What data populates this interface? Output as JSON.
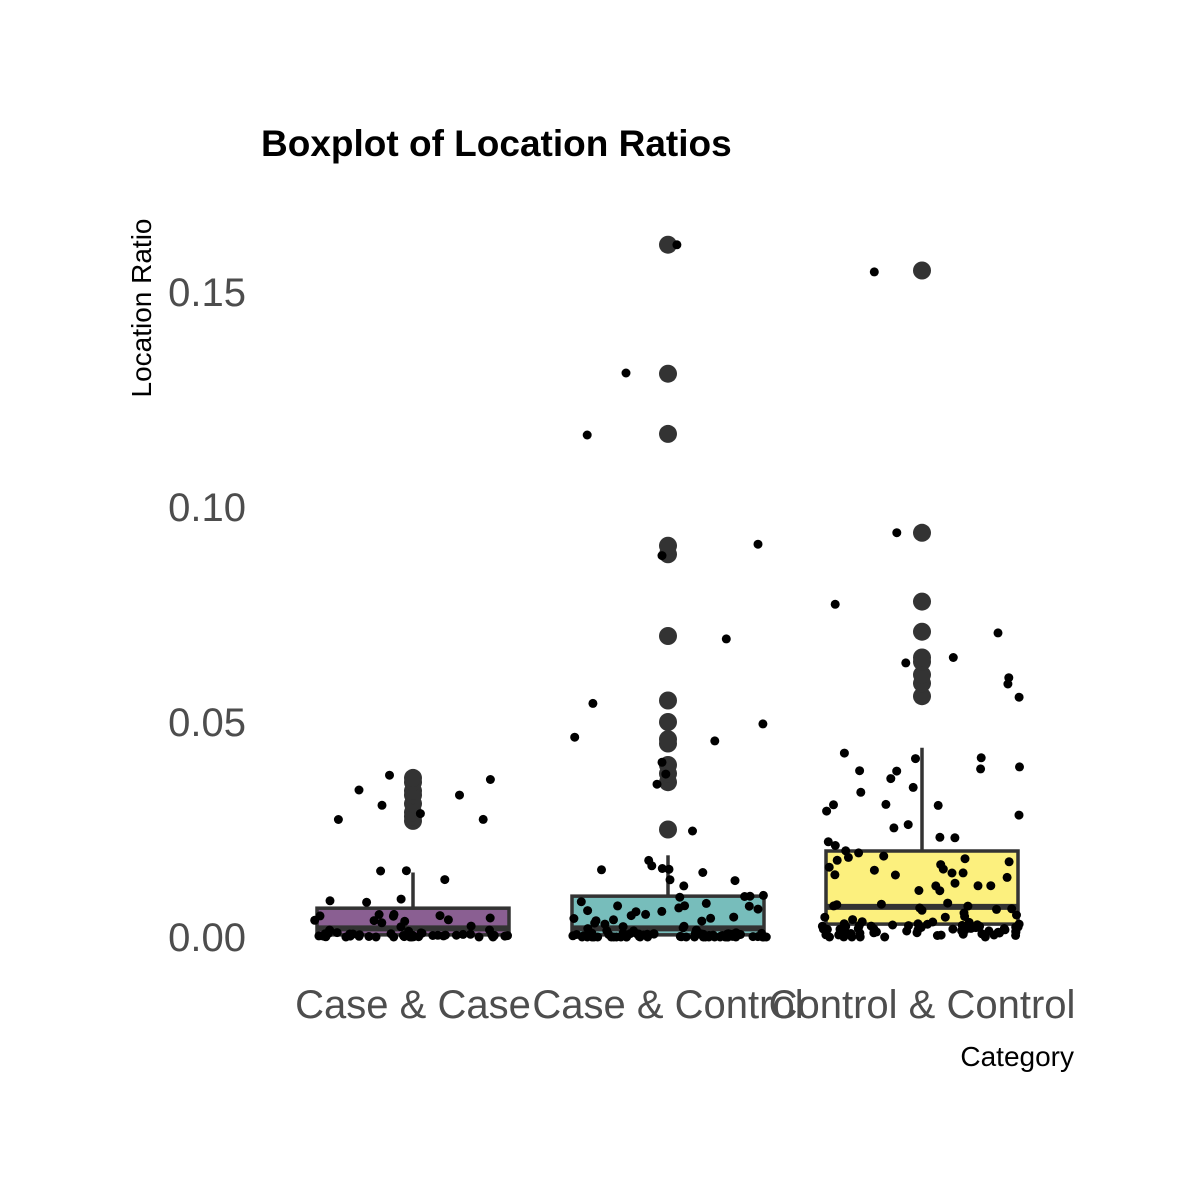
{
  "chart_data": {
    "type": "boxplot",
    "title": "Boxplot of Location Ratios",
    "xlabel": "Category",
    "ylabel": "Location Ratio",
    "ylim": [
      -0.006,
      0.172
    ],
    "yticks": [
      "0.00",
      "0.05",
      "0.10",
      "0.15"
    ],
    "ytick_values": [
      0,
      0.05,
      0.1,
      0.15
    ],
    "categories": [
      "Case & Case",
      "Case & Control",
      "Control & Control"
    ],
    "colors": [
      "#8a5f92",
      "#77bdbb",
      "#fcf07e"
    ],
    "box_outline_color": "#333333",
    "point_color": "#000000",
    "outlier_color": "#333333",
    "grid": false,
    "legend": "none",
    "boxes": [
      {
        "category": "Case & Case",
        "whisker_low": 0.0,
        "q1": 0.0005,
        "median": 0.002,
        "q3": 0.0067,
        "whisker_high": 0.015,
        "outliers": [
          0.027,
          0.028,
          0.029,
          0.031,
          0.033,
          0.034,
          0.036,
          0.037
        ]
      },
      {
        "category": "Case & Control",
        "whisker_low": 0.0,
        "q1": 0.0005,
        "median": 0.002,
        "q3": 0.0095,
        "whisker_high": 0.019,
        "outliers": [
          0.025,
          0.036,
          0.038,
          0.04,
          0.045,
          0.046,
          0.05,
          0.055,
          0.07,
          0.089,
          0.091,
          0.117,
          0.131,
          0.161
        ]
      },
      {
        "category": "Control & Control",
        "whisker_low": 0.0,
        "q1": 0.003,
        "median": 0.007,
        "q3": 0.02,
        "whisker_high": 0.044,
        "outliers": [
          0.056,
          0.059,
          0.061,
          0.064,
          0.065,
          0.071,
          0.078,
          0.094,
          0.155
        ]
      }
    ]
  }
}
